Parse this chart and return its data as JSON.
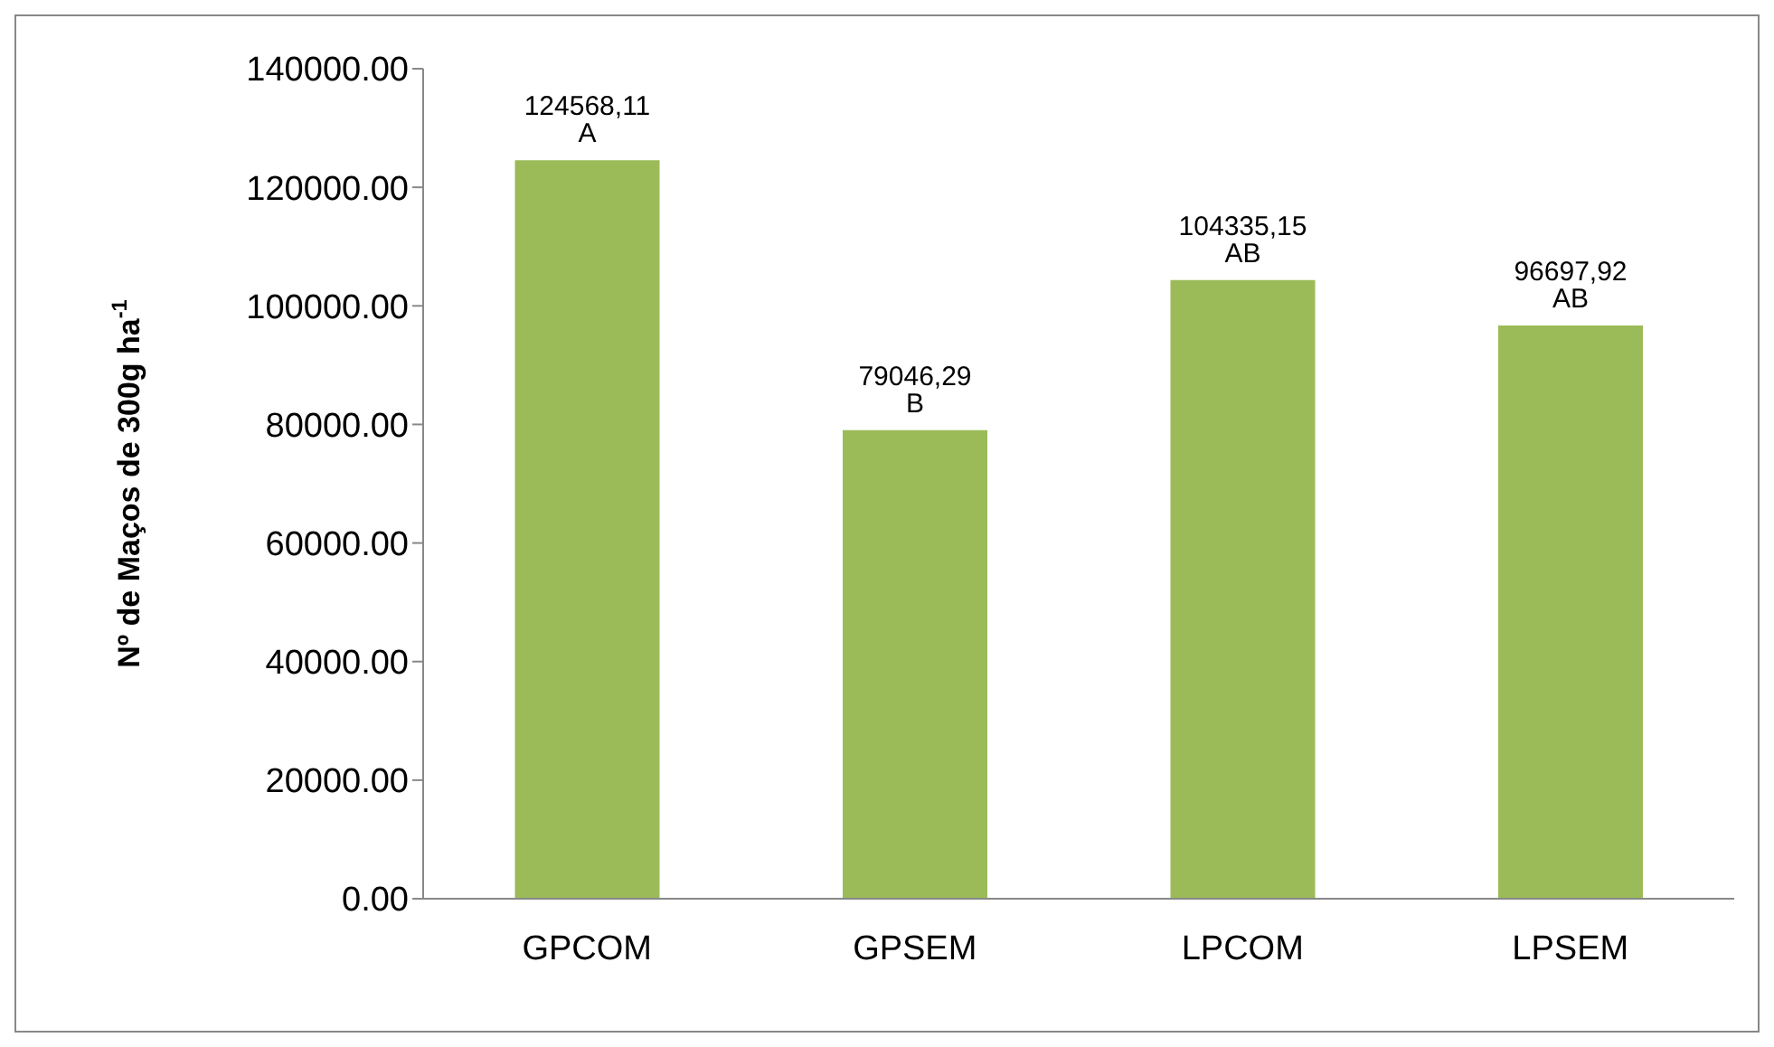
{
  "chart_data": {
    "type": "bar",
    "ylabel": "Nº de Maços  de 300g ha$^{-1}$",
    "categories": [
      "GPCOM",
      "GPSEM",
      "LPCOM",
      "LPSEM"
    ],
    "values": [
      124568.11,
      79046.29,
      104335.15,
      96697.92
    ],
    "value_labels": [
      "124568,11 A",
      "79046,29 B",
      "104335,15 AB",
      "96697,92 AB"
    ],
    "color": "#9bbb59",
    "ylim": [
      0,
      140000
    ],
    "yticks": [
      {
        "value": 0,
        "label": "0.00"
      },
      {
        "value": 20000,
        "label": "20000.00"
      },
      {
        "value": 40000,
        "label": "40000.00"
      },
      {
        "value": 60000,
        "label": "60000.00"
      },
      {
        "value": 80000,
        "label": "80000.00"
      },
      {
        "value": 100000,
        "label": "100000.00"
      },
      {
        "value": 120000,
        "label": "120000.00"
      },
      {
        "value": 140000,
        "label": "140000.00"
      }
    ],
    "grid": false,
    "legend": false
  }
}
